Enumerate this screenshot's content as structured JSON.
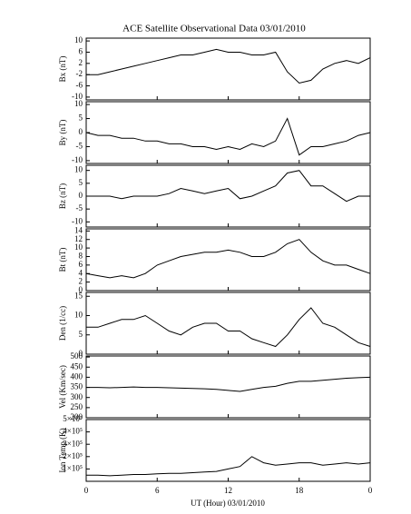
{
  "title": "ACE Satellite Observational Data   03/01/2010",
  "x_label": "UT (Hour)   03/01/2010",
  "xaxis": {
    "x": [
      0,
      1,
      2,
      3,
      4,
      5,
      6,
      7,
      8,
      9,
      10,
      11,
      12,
      13,
      14,
      15,
      16,
      17,
      18,
      19,
      20,
      21,
      22,
      23,
      24
    ],
    "xlim": [
      0,
      24
    ],
    "xticks": [
      0,
      6,
      12,
      18,
      {
        "value": 24,
        "label": "0"
      }
    ]
  },
  "chart_data": [
    {
      "type": "line",
      "y_label": "Bx (nT)",
      "ylim": [
        -11,
        11
      ],
      "yticks": [
        -10,
        -6,
        -2,
        2,
        6,
        10
      ],
      "color": "#000000",
      "values": [
        -2,
        -2,
        -1,
        0,
        1,
        2,
        3,
        4,
        5,
        5,
        6,
        7,
        6,
        6,
        5,
        5,
        6,
        -1,
        -5,
        -4,
        0,
        2,
        3,
        2,
        4
      ]
    },
    {
      "type": "line",
      "y_label": "By (nT)",
      "ylim": [
        -11,
        11
      ],
      "yticks": [
        -10,
        -5,
        0,
        5,
        10
      ],
      "color": "#000000",
      "values": [
        0,
        -1,
        -1,
        -2,
        -2,
        -3,
        -3,
        -4,
        -4,
        -5,
        -5,
        -6,
        -5,
        -6,
        -4,
        -5,
        -3,
        5,
        -8,
        -5,
        -5,
        -4,
        -3,
        -1,
        0
      ]
    },
    {
      "type": "line",
      "y_label": "Bz (nT)",
      "ylim": [
        -12,
        12
      ],
      "yticks": [
        -10,
        -5,
        0,
        5,
        10
      ],
      "color": "#000000",
      "values": [
        0,
        0,
        0,
        -1,
        0,
        0,
        0,
        1,
        3,
        2,
        1,
        2,
        3,
        -1,
        0,
        2,
        4,
        9,
        10,
        4,
        4,
        1,
        -2,
        0,
        0
      ]
    },
    {
      "type": "line",
      "y_label": "Bt (nT)",
      "ylim": [
        0,
        14.5
      ],
      "yticks": [
        0,
        2,
        4,
        6,
        8,
        10,
        12,
        14
      ],
      "color": "#000000",
      "values": [
        4,
        3.5,
        3,
        3.5,
        3,
        4,
        6,
        7,
        8,
        8.5,
        9,
        9,
        9.5,
        9,
        8,
        8,
        9,
        11,
        12,
        9,
        7,
        6,
        6,
        5,
        4
      ]
    },
    {
      "type": "line",
      "y_label": "Den (1/cc)",
      "ylim": [
        0,
        16
      ],
      "yticks": [
        0,
        5,
        10,
        15
      ],
      "color": "#000000",
      "values": [
        7,
        7,
        8,
        9,
        9,
        10,
        8,
        6,
        5,
        7,
        8,
        8,
        6,
        6,
        4,
        3,
        2,
        5,
        9,
        12,
        8,
        7,
        5,
        3,
        2
      ]
    },
    {
      "type": "line",
      "y_label": "Vel (Km/sec)",
      "ylim": [
        200,
        505
      ],
      "yticks": [
        200,
        250,
        300,
        350,
        400,
        450,
        500
      ],
      "color": "#000000",
      "values": [
        350,
        350,
        348,
        350,
        352,
        350,
        350,
        348,
        346,
        345,
        343,
        340,
        335,
        330,
        340,
        350,
        355,
        370,
        380,
        380,
        385,
        390,
        395,
        398,
        400
      ]
    },
    {
      "type": "line",
      "y_label": "Ion Temp (K)",
      "ylim": [
        0,
        500000
      ],
      "yticks": [
        {
          "value": 100000,
          "label": "1×10⁵"
        },
        {
          "value": 200000,
          "label": "2×10⁵"
        },
        {
          "value": 300000,
          "label": "3×10⁵"
        },
        {
          "value": 400000,
          "label": "4×10⁵"
        },
        {
          "value": 500000,
          "label": "5×10⁵"
        }
      ],
      "color": "#000000",
      "values": [
        50000,
        50000,
        45000,
        50000,
        55000,
        55000,
        60000,
        65000,
        65000,
        70000,
        75000,
        80000,
        100000,
        120000,
        200000,
        150000,
        130000,
        140000,
        150000,
        150000,
        130000,
        140000,
        150000,
        140000,
        150000
      ]
    }
  ]
}
